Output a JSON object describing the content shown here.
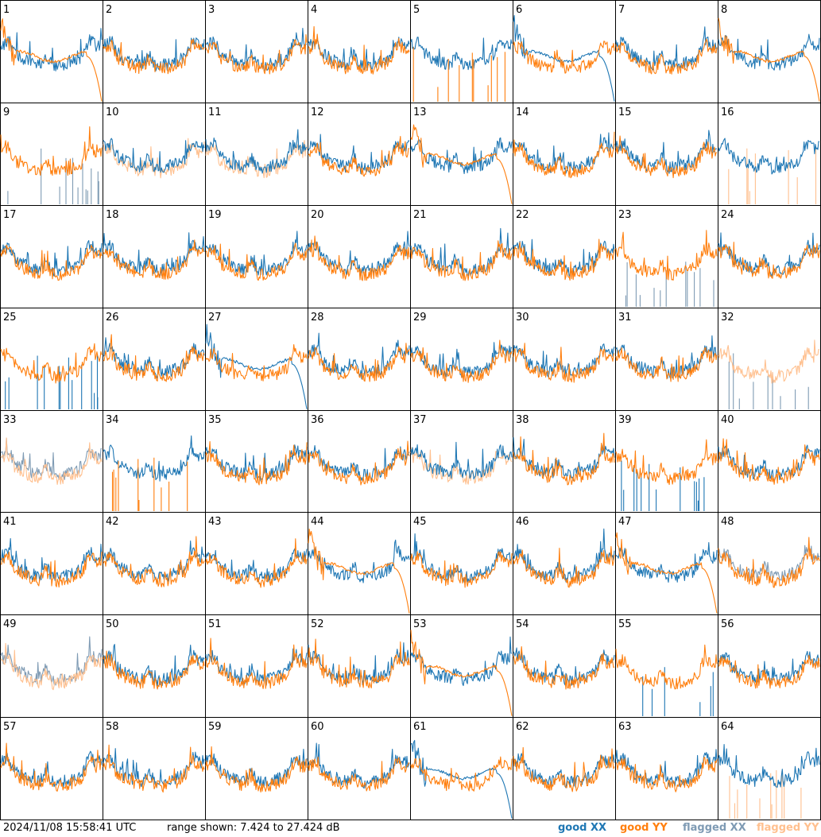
{
  "timestamp": "2024/11/08 15:58:41 UTC",
  "range_text": "range shown: 7.424 to 27.424 dB",
  "legend": [
    {
      "label": "good XX",
      "color": "#1f77b4"
    },
    {
      "label": "good YY",
      "color": "#ff7f0e"
    },
    {
      "label": "flagged XX",
      "color": "#7f9bb4"
    },
    {
      "label": "flagged YY",
      "color": "#ffc08f"
    }
  ],
  "chart_data": {
    "type": "line",
    "layout": "small-multiples",
    "grid": "8x8",
    "y_range_db": [
      7.424,
      27.424
    ],
    "tiles": [
      {
        "n": "1",
        "xx": "good",
        "yy": "good",
        "xx_shape": "normal",
        "yy_shape": "rolloff"
      },
      {
        "n": "2",
        "xx": "good",
        "yy": "good",
        "xx_shape": "normal",
        "yy_shape": "normal"
      },
      {
        "n": "3",
        "xx": "good",
        "yy": "good",
        "xx_shape": "normal",
        "yy_shape": "normal"
      },
      {
        "n": "4",
        "xx": "good",
        "yy": "good",
        "xx_shape": "normal",
        "yy_shape": "normal"
      },
      {
        "n": "5",
        "xx": "good",
        "yy": "good",
        "xx_shape": "normal",
        "yy_shape": "spikes"
      },
      {
        "n": "6",
        "xx": "good",
        "yy": "good",
        "xx_shape": "rolloff",
        "yy_shape": "normal"
      },
      {
        "n": "7",
        "xx": "good",
        "yy": "good",
        "xx_shape": "normal",
        "yy_shape": "normal"
      },
      {
        "n": "8",
        "xx": "good",
        "yy": "good",
        "xx_shape": "normal",
        "yy_shape": "rolloff"
      },
      {
        "n": "9",
        "xx": "flagged",
        "yy": "good",
        "xx_shape": "spikes",
        "yy_shape": "normal"
      },
      {
        "n": "10",
        "xx": "good",
        "yy": "flagged",
        "xx_shape": "normal",
        "yy_shape": "normal"
      },
      {
        "n": "11",
        "xx": "good",
        "yy": "flagged",
        "xx_shape": "normal",
        "yy_shape": "normal"
      },
      {
        "n": "12",
        "xx": "good",
        "yy": "good",
        "xx_shape": "normal",
        "yy_shape": "normal"
      },
      {
        "n": "13",
        "xx": "good",
        "yy": "good",
        "xx_shape": "normal",
        "yy_shape": "rolloff"
      },
      {
        "n": "14",
        "xx": "good",
        "yy": "good",
        "xx_shape": "normal",
        "yy_shape": "normal"
      },
      {
        "n": "15",
        "xx": "good",
        "yy": "good",
        "xx_shape": "normal",
        "yy_shape": "normal"
      },
      {
        "n": "16",
        "xx": "good",
        "yy": "flagged",
        "xx_shape": "normal",
        "yy_shape": "spikes"
      },
      {
        "n": "17",
        "xx": "good",
        "yy": "good",
        "xx_shape": "normal",
        "yy_shape": "normal"
      },
      {
        "n": "18",
        "xx": "good",
        "yy": "good",
        "xx_shape": "normal",
        "yy_shape": "normal"
      },
      {
        "n": "19",
        "xx": "good",
        "yy": "good",
        "xx_shape": "normal",
        "yy_shape": "normal"
      },
      {
        "n": "20",
        "xx": "good",
        "yy": "good",
        "xx_shape": "normal",
        "yy_shape": "normal"
      },
      {
        "n": "21",
        "xx": "good",
        "yy": "good",
        "xx_shape": "normal",
        "yy_shape": "normal"
      },
      {
        "n": "22",
        "xx": "good",
        "yy": "good",
        "xx_shape": "normal",
        "yy_shape": "normal"
      },
      {
        "n": "23",
        "xx": "flagged",
        "yy": "good",
        "xx_shape": "spikes",
        "yy_shape": "normal"
      },
      {
        "n": "24",
        "xx": "good",
        "yy": "good",
        "xx_shape": "normal",
        "yy_shape": "normal"
      },
      {
        "n": "25",
        "xx": "good",
        "yy": "good",
        "xx_shape": "spikes",
        "yy_shape": "normal"
      },
      {
        "n": "26",
        "xx": "good",
        "yy": "good",
        "xx_shape": "normal",
        "yy_shape": "normal"
      },
      {
        "n": "27",
        "xx": "good",
        "yy": "good",
        "xx_shape": "rolloff",
        "yy_shape": "normal"
      },
      {
        "n": "28",
        "xx": "good",
        "yy": "good",
        "xx_shape": "normal",
        "yy_shape": "normal"
      },
      {
        "n": "29",
        "xx": "good",
        "yy": "good",
        "xx_shape": "normal",
        "yy_shape": "normal"
      },
      {
        "n": "30",
        "xx": "good",
        "yy": "good",
        "xx_shape": "normal",
        "yy_shape": "normal"
      },
      {
        "n": "31",
        "xx": "good",
        "yy": "good",
        "xx_shape": "normal",
        "yy_shape": "normal"
      },
      {
        "n": "32",
        "xx": "flagged",
        "yy": "flagged",
        "xx_shape": "spikes",
        "yy_shape": "normal"
      },
      {
        "n": "33",
        "xx": "flagged",
        "yy": "flagged",
        "xx_shape": "normal",
        "yy_shape": "normal"
      },
      {
        "n": "34",
        "xx": "good",
        "yy": "good",
        "xx_shape": "normal",
        "yy_shape": "spikes"
      },
      {
        "n": "35",
        "xx": "good",
        "yy": "good",
        "xx_shape": "normal",
        "yy_shape": "normal"
      },
      {
        "n": "36",
        "xx": "good",
        "yy": "good",
        "xx_shape": "normal",
        "yy_shape": "normal"
      },
      {
        "n": "37",
        "xx": "good",
        "yy": "flagged",
        "xx_shape": "normal",
        "yy_shape": "normal"
      },
      {
        "n": "38",
        "xx": "good",
        "yy": "good",
        "xx_shape": "normal",
        "yy_shape": "normal"
      },
      {
        "n": "39",
        "xx": "good",
        "yy": "good",
        "xx_shape": "spikes",
        "yy_shape": "normal"
      },
      {
        "n": "40",
        "xx": "good",
        "yy": "good",
        "xx_shape": "normal",
        "yy_shape": "normal"
      },
      {
        "n": "41",
        "xx": "good",
        "yy": "good",
        "xx_shape": "normal",
        "yy_shape": "normal"
      },
      {
        "n": "42",
        "xx": "good",
        "yy": "good",
        "xx_shape": "normal",
        "yy_shape": "normal"
      },
      {
        "n": "43",
        "xx": "good",
        "yy": "good",
        "xx_shape": "normal",
        "yy_shape": "normal"
      },
      {
        "n": "44",
        "xx": "good",
        "yy": "good",
        "xx_shape": "normal",
        "yy_shape": "rolloff"
      },
      {
        "n": "45",
        "xx": "good",
        "yy": "good",
        "xx_shape": "normal",
        "yy_shape": "normal"
      },
      {
        "n": "46",
        "xx": "good",
        "yy": "good",
        "xx_shape": "normal",
        "yy_shape": "normal"
      },
      {
        "n": "47",
        "xx": "good",
        "yy": "good",
        "xx_shape": "normal",
        "yy_shape": "rolloff"
      },
      {
        "n": "48",
        "xx": "flagged",
        "yy": "good",
        "xx_shape": "normal",
        "yy_shape": "normal"
      },
      {
        "n": "49",
        "xx": "flagged",
        "yy": "flagged",
        "xx_shape": "normal",
        "yy_shape": "normal"
      },
      {
        "n": "50",
        "xx": "good",
        "yy": "good",
        "xx_shape": "normal",
        "yy_shape": "normal"
      },
      {
        "n": "51",
        "xx": "good",
        "yy": "good",
        "xx_shape": "normal",
        "yy_shape": "normal"
      },
      {
        "n": "52",
        "xx": "good",
        "yy": "good",
        "xx_shape": "normal",
        "yy_shape": "normal"
      },
      {
        "n": "53",
        "xx": "good",
        "yy": "good",
        "xx_shape": "normal",
        "yy_shape": "rolloff"
      },
      {
        "n": "54",
        "xx": "good",
        "yy": "good",
        "xx_shape": "normal",
        "yy_shape": "normal"
      },
      {
        "n": "55",
        "xx": "good",
        "yy": "good",
        "xx_shape": "spikes",
        "yy_shape": "normal"
      },
      {
        "n": "56",
        "xx": "good",
        "yy": "good",
        "xx_shape": "normal",
        "yy_shape": "normal"
      },
      {
        "n": "57",
        "xx": "good",
        "yy": "good",
        "xx_shape": "normal",
        "yy_shape": "normal"
      },
      {
        "n": "58",
        "xx": "good",
        "yy": "good",
        "xx_shape": "normal",
        "yy_shape": "normal"
      },
      {
        "n": "59",
        "xx": "good",
        "yy": "good",
        "xx_shape": "normal",
        "yy_shape": "normal"
      },
      {
        "n": "60",
        "xx": "good",
        "yy": "good",
        "xx_shape": "normal",
        "yy_shape": "normal"
      },
      {
        "n": "61",
        "xx": "good",
        "yy": "good",
        "xx_shape": "rolloff",
        "yy_shape": "normal"
      },
      {
        "n": "62",
        "xx": "good",
        "yy": "good",
        "xx_shape": "normal",
        "yy_shape": "normal"
      },
      {
        "n": "63",
        "xx": "good",
        "yy": "good",
        "xx_shape": "normal",
        "yy_shape": "normal"
      },
      {
        "n": "64",
        "xx": "good",
        "yy": "flagged",
        "xx_shape": "normal",
        "yy_shape": "spikes"
      }
    ]
  }
}
